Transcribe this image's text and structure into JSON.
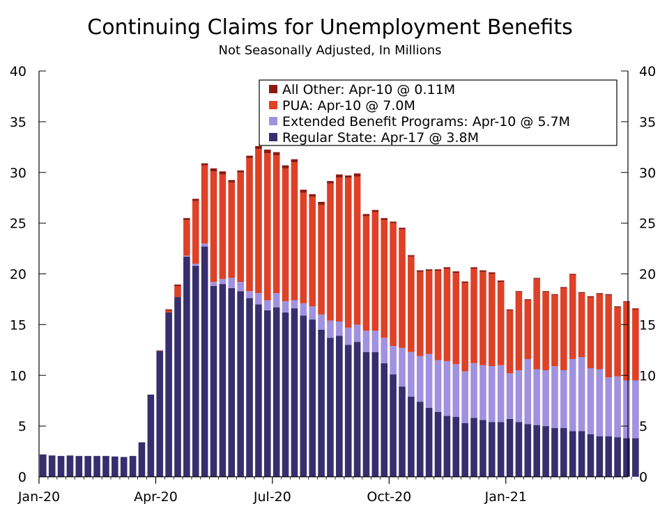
{
  "chart_data": {
    "type": "bar",
    "stacked": true,
    "title": "Continuing Claims for Unemployment Benefits",
    "subtitle": "Not Seasonally Adjusted, In Millions",
    "ylim": [
      0,
      40
    ],
    "yticks": [
      0,
      5,
      10,
      15,
      20,
      25,
      30,
      35,
      40
    ],
    "xlabels": [
      "Jan-20",
      "Apr-20",
      "Jul-20",
      "Oct-20",
      "Jan-21"
    ],
    "xlabel_positions": [
      0,
      13,
      26,
      39,
      52
    ],
    "legend_position": "top-right",
    "colors": {
      "regular": "#372e6e",
      "extended": "#a092e0",
      "pua": "#de4127",
      "other": "#8b1a12",
      "axis": "#000000"
    },
    "legend": [
      {
        "key": "other",
        "label": "All Other: Apr-10 @ 0.11M"
      },
      {
        "key": "pua",
        "label": "PUA: Apr-10 @ 7.0M"
      },
      {
        "key": "extended",
        "label": "Extended Benefit Programs: Apr-10 @ 5.7M"
      },
      {
        "key": "regular",
        "label": "Regular State: Apr-17 @ 3.8M"
      }
    ],
    "series": [
      {
        "name": "Regular State",
        "key": "regular",
        "values": [
          2.2,
          2.1,
          2.05,
          2.1,
          2.05,
          2.05,
          2.05,
          2.05,
          2.0,
          1.95,
          2.05,
          3.4,
          8.1,
          12.4,
          16.2,
          17.7,
          21.7,
          20.8,
          22.7,
          18.8,
          19.0,
          18.6,
          18.3,
          17.6,
          17.0,
          16.4,
          16.7,
          16.2,
          16.6,
          15.9,
          15.5,
          14.5,
          13.7,
          13.9,
          13.0,
          13.3,
          12.3,
          12.3,
          11.2,
          10.1,
          8.9,
          7.9,
          7.4,
          6.8,
          6.4,
          6.0,
          5.9,
          5.3,
          5.8,
          5.6,
          5.4,
          5.4,
          5.7,
          5.4,
          5.2,
          5.1,
          5.0,
          4.8,
          4.8,
          4.5,
          4.5,
          4.2,
          4.0,
          4.0,
          3.9,
          3.8,
          3.8
        ]
      },
      {
        "name": "Extended Benefit Programs",
        "key": "extended",
        "values": [
          0,
          0,
          0,
          0,
          0,
          0,
          0,
          0,
          0,
          0,
          0,
          0,
          0,
          0,
          0,
          0,
          0.1,
          0.2,
          0.3,
          0.4,
          0.5,
          1.0,
          0.9,
          0.7,
          1.1,
          1.0,
          1.4,
          1.1,
          0.8,
          1.2,
          1.3,
          1.5,
          1.7,
          1.4,
          1.7,
          1.7,
          2.1,
          2.1,
          2.5,
          2.8,
          3.8,
          4.4,
          4.5,
          5.3,
          5.1,
          5.4,
          5.2,
          5.1,
          5.4,
          5.4,
          5.5,
          5.6,
          4.5,
          5.1,
          6.4,
          5.5,
          5.5,
          6.1,
          5.7,
          7.1,
          7.3,
          6.5,
          6.6,
          5.8,
          6.0,
          5.7,
          5.7
        ]
      },
      {
        "name": "PUA",
        "key": "pua",
        "values": [
          0,
          0,
          0,
          0,
          0,
          0,
          0,
          0,
          0,
          0,
          0,
          0,
          0,
          0,
          0.2,
          1.1,
          3.5,
          6.2,
          7.7,
          10.9,
          10.3,
          9.4,
          10.8,
          13.1,
          14.2,
          14.5,
          13.6,
          13.1,
          13.6,
          10.9,
          10.8,
          10.8,
          13.5,
          14.2,
          14.8,
          14.6,
          11.3,
          11.7,
          11.6,
          12.1,
          11.7,
          9.4,
          8.3,
          8.2,
          8.8,
          9.1,
          9.0,
          8.7,
          9.3,
          9.2,
          9.1,
          8.2,
          6.2,
          7.7,
          5.8,
          8.9,
          7.7,
          7.0,
          8.1,
          8.3,
          6.3,
          7.0,
          7.4,
          8.1,
          6.8,
          7.7,
          7.0
        ]
      },
      {
        "name": "All Other",
        "key": "other",
        "values": [
          0,
          0,
          0,
          0,
          0,
          0,
          0,
          0,
          0,
          0,
          0,
          0,
          0,
          0.05,
          0.1,
          0.15,
          0.2,
          0.2,
          0.2,
          0.3,
          0.3,
          0.25,
          0.2,
          0.25,
          0.3,
          0.35,
          0.3,
          0.3,
          0.3,
          0.3,
          0.25,
          0.3,
          0.25,
          0.3,
          0.2,
          0.3,
          0.2,
          0.2,
          0.2,
          0.15,
          0.15,
          0.15,
          0.15,
          0.15,
          0.15,
          0.15,
          0.15,
          0.15,
          0.15,
          0.15,
          0.15,
          0.15,
          0.1,
          0.1,
          0.1,
          0.1,
          0.1,
          0.1,
          0.1,
          0.1,
          0.1,
          0.1,
          0.1,
          0.1,
          0.1,
          0.1,
          0.1
        ]
      }
    ]
  }
}
